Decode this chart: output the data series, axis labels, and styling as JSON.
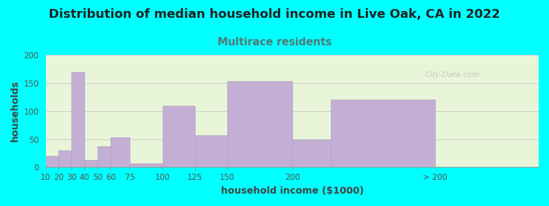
{
  "title": "Distribution of median household income in Live Oak, CA in 2022",
  "subtitle": "Multirace residents",
  "xlabel": "household income ($1000)",
  "ylabel": "households",
  "background_color": "#00FFFF",
  "plot_bg_color": "#e8f5d8",
  "bar_color": "#c4afd4",
  "bar_edge_color": "#b09fc0",
  "bar_left_edges": [
    10,
    20,
    30,
    40,
    50,
    60,
    75,
    100,
    125,
    150,
    200,
    230
  ],
  "bar_widths": [
    10,
    10,
    10,
    10,
    10,
    15,
    25,
    25,
    25,
    50,
    30,
    80
  ],
  "values": [
    20,
    30,
    170,
    13,
    37,
    53,
    7,
    110,
    57,
    154,
    50,
    120
  ],
  "xtick_positions": [
    10,
    20,
    30,
    40,
    50,
    60,
    75,
    100,
    125,
    150,
    200,
    310
  ],
  "xtick_labels": [
    "10",
    "20",
    "30",
    "40",
    "50",
    "60",
    "75",
    "100",
    "125",
    "150",
    "200",
    "> 200"
  ],
  "xlim": [
    10,
    390
  ],
  "ylim": [
    0,
    200
  ],
  "yticks": [
    0,
    50,
    100,
    150,
    200
  ],
  "watermark": "City-Data.com",
  "title_fontsize": 13,
  "subtitle_fontsize": 11,
  "subtitle_color": "#557777",
  "axis_label_fontsize": 10,
  "tick_label_fontsize": 8.5
}
